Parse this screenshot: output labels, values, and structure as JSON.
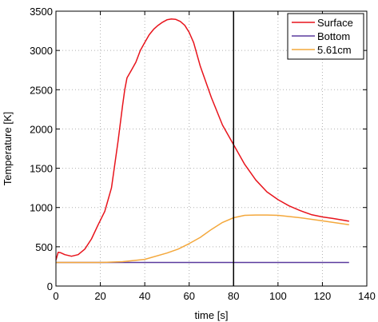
{
  "chart_data": {
    "type": "line",
    "xlabel": "time [s]",
    "ylabel": "Temperature [K]",
    "xlim": [
      0,
      140
    ],
    "ylim": [
      0,
      3500
    ],
    "xticks": [
      0,
      20,
      40,
      60,
      80,
      100,
      120,
      140
    ],
    "yticks": [
      0,
      500,
      1000,
      1500,
      2000,
      2500,
      3000,
      3500
    ],
    "grid": true,
    "legend_position": "top-right",
    "vertical_line_x": 80,
    "series": [
      {
        "name": "Surface",
        "color": "#e8141c",
        "x": [
          0,
          1,
          2,
          4,
          7,
          10,
          13,
          16,
          19,
          22,
          25,
          28,
          30,
          31,
          32,
          33,
          34,
          36,
          38,
          40,
          42,
          44,
          46,
          48,
          50,
          52,
          54,
          56,
          58,
          60,
          62,
          65,
          70,
          75,
          80,
          85,
          90,
          95,
          100,
          105,
          110,
          115,
          120,
          125,
          130,
          132
        ],
        "y": [
          330,
          430,
          425,
          400,
          380,
          400,
          470,
          600,
          780,
          950,
          1250,
          1850,
          2300,
          2500,
          2650,
          2700,
          2750,
          2850,
          3000,
          3100,
          3200,
          3270,
          3320,
          3360,
          3390,
          3400,
          3395,
          3370,
          3320,
          3230,
          3100,
          2800,
          2400,
          2050,
          1800,
          1550,
          1350,
          1200,
          1100,
          1020,
          960,
          910,
          880,
          860,
          835,
          825
        ]
      },
      {
        "name": "Bottom",
        "color": "#5a3a9e",
        "x": [
          0,
          132
        ],
        "y": [
          300,
          300
        ]
      },
      {
        "name": "5.61cm",
        "color": "#f4a83c",
        "x": [
          0,
          20,
          30,
          40,
          50,
          55,
          60,
          65,
          70,
          75,
          80,
          85,
          90,
          95,
          100,
          110,
          120,
          132
        ],
        "y": [
          300,
          300,
          310,
          340,
          420,
          470,
          540,
          620,
          720,
          810,
          870,
          900,
          905,
          905,
          900,
          870,
          830,
          780
        ]
      }
    ]
  }
}
